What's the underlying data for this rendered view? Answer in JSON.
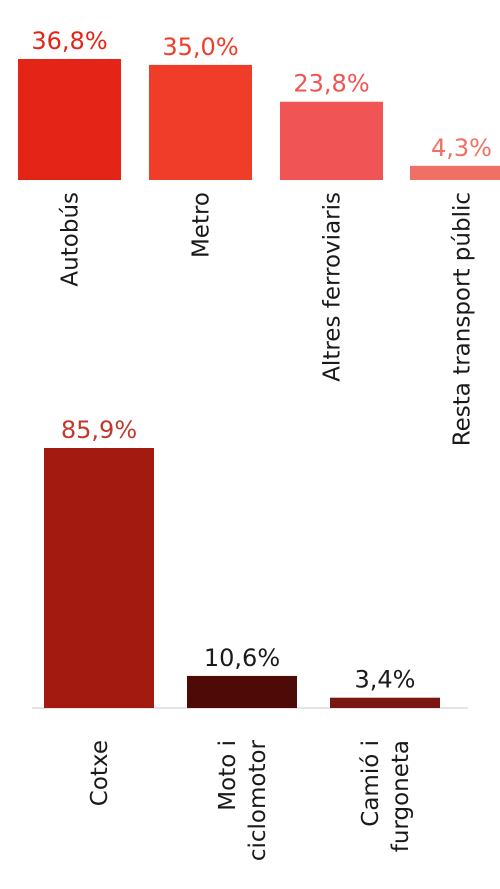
{
  "chart_data": [
    {
      "type": "bar",
      "categories": [
        "Autobús",
        "Metro",
        "Altres ferroviaris",
        "Resta transport públic"
      ],
      "values": [
        36.8,
        35.0,
        23.8,
        4.3
      ],
      "value_labels": [
        "36,8%",
        "35,0%",
        "23,8%",
        "4,3%"
      ],
      "colors": [
        "#e32416",
        "#ef3d2a",
        "#f05454",
        "#f07065"
      ],
      "ylim": [
        0,
        36.8
      ]
    },
    {
      "type": "bar",
      "categories": [
        [
          "Cotxe"
        ],
        [
          "Moto i",
          "ciclomotor"
        ],
        [
          "Camió i",
          "furgoneta"
        ]
      ],
      "values": [
        85.9,
        10.6,
        3.4
      ],
      "value_labels": [
        "85,9%",
        "10,6%",
        "3,4%"
      ],
      "colors": [
        "#a31a10",
        "#4d0a06",
        "#7a1610"
      ],
      "label_color": "#1a1a1a",
      "first_label_color": "#c0392b",
      "ylim": [
        0,
        85.9
      ]
    }
  ]
}
